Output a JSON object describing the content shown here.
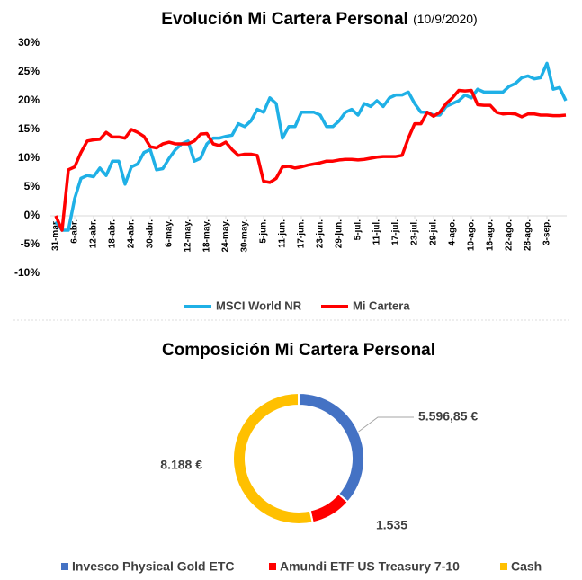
{
  "chart_data": [
    {
      "type": "line",
      "title": "Evolución Mi Cartera Personal",
      "subtitle": "(10/9/2020)",
      "categories": [
        "31-mar.",
        null,
        null,
        "6-abr.",
        null,
        null,
        "12-abr.",
        null,
        null,
        "18-abr.",
        null,
        null,
        "24-abr.",
        null,
        null,
        "30-abr.",
        null,
        null,
        "6-may.",
        null,
        null,
        "12-may.",
        null,
        null,
        "18-may.",
        null,
        null,
        "24-may.",
        null,
        null,
        "30-may.",
        null,
        null,
        "5-jun.",
        null,
        null,
        "11-jun.",
        null,
        null,
        "17-jun.",
        null,
        null,
        "23-jun.",
        null,
        null,
        "29-jun.",
        null,
        null,
        "5-jul.",
        null,
        null,
        "11-jul.",
        null,
        null,
        "17-jul.",
        null,
        null,
        "23-jul.",
        null,
        null,
        "29-jul.",
        null,
        null,
        "4-ago.",
        null,
        null,
        "10-ago.",
        null,
        null,
        "16-ago.",
        null,
        null,
        "22-ago.",
        null,
        null,
        "28-ago.",
        null,
        null,
        "3-sep.",
        null,
        null,
        null
      ],
      "series": [
        {
          "name": "MSCI World NR",
          "color": "#1fb0e6",
          "values": [
            -1,
            -2.5,
            -2.5,
            3,
            6.5,
            7,
            6.8,
            8.3,
            7,
            9.5,
            9.5,
            5.5,
            8.5,
            9,
            11,
            11.5,
            8,
            8.2,
            10,
            11.5,
            12.5,
            13,
            9.5,
            10,
            12.5,
            13.5,
            13.5,
            13.8,
            14,
            16,
            15.5,
            16.5,
            18.5,
            18,
            20.5,
            19.5,
            13.5,
            15.5,
            15.5,
            18,
            18,
            18,
            17.5,
            15.5,
            15.5,
            16.5,
            18,
            18.5,
            17.5,
            19.5,
            19,
            20,
            19,
            20.5,
            21,
            21,
            21.5,
            19.5,
            18,
            18,
            17.5,
            17.5,
            19,
            19.5,
            20,
            21,
            20.5,
            22,
            21.5,
            21.5,
            21.5,
            21.5,
            22.5,
            23,
            24,
            24.3,
            23.8,
            24,
            26.5,
            22,
            22.3,
            20
          ]
        },
        {
          "name": "Mi Cartera",
          "color": "#ff0000",
          "values": [
            0,
            -2.5,
            8,
            8.5,
            11,
            13,
            13.2,
            13.3,
            14.5,
            13.7,
            13.7,
            13.5,
            15,
            14.5,
            13.8,
            12,
            11.8,
            12.5,
            12.8,
            12.5,
            12.5,
            12.5,
            13,
            14.2,
            14.3,
            12.5,
            12.2,
            12.8,
            11.5,
            10.5,
            10.7,
            10.7,
            10.5,
            6,
            5.8,
            6.5,
            8.5,
            8.6,
            8.3,
            8.5,
            8.8,
            9,
            9.2,
            9.5,
            9.5,
            9.7,
            9.8,
            9.8,
            9.7,
            9.8,
            10,
            10.2,
            10.3,
            10.3,
            10.3,
            10.5,
            13.5,
            16,
            16,
            18,
            17.3,
            18,
            19.5,
            20.5,
            21.8,
            21.7,
            21.8,
            19.3,
            19.2,
            19.2,
            18,
            17.7,
            17.8,
            17.7,
            17.2,
            17.7,
            17.7,
            17.5,
            17.5,
            17.4,
            17.4,
            17.5
          ]
        }
      ],
      "ylim": [
        -10,
        30
      ],
      "yticks": [
        {
          "value": -10,
          "label": "-10%"
        },
        {
          "value": -5,
          "label": "-5%"
        },
        {
          "value": 0,
          "label": "0%"
        },
        {
          "value": 5,
          "label": "5%"
        },
        {
          "value": 10,
          "label": "10%"
        },
        {
          "value": 15,
          "label": "15%"
        },
        {
          "value": 20,
          "label": "20%"
        },
        {
          "value": 25,
          "label": "25%"
        },
        {
          "value": 30,
          "label": "30%"
        }
      ],
      "grid": false,
      "legend": "bottom"
    },
    {
      "type": "doughnut",
      "title": "Composición Mi Cartera Personal",
      "categories": [
        "Invesco Physical Gold ETC",
        "Amundi ETF US Treasury 7-10",
        "Cash"
      ],
      "values": [
        5596.85,
        1535,
        8188
      ],
      "value_labels": [
        "5.596,85 €",
        "1.535",
        "8.188 €"
      ],
      "colors": [
        "#4472c4",
        "#ff0000",
        "#ffc000"
      ],
      "legend": "bottom"
    }
  ]
}
